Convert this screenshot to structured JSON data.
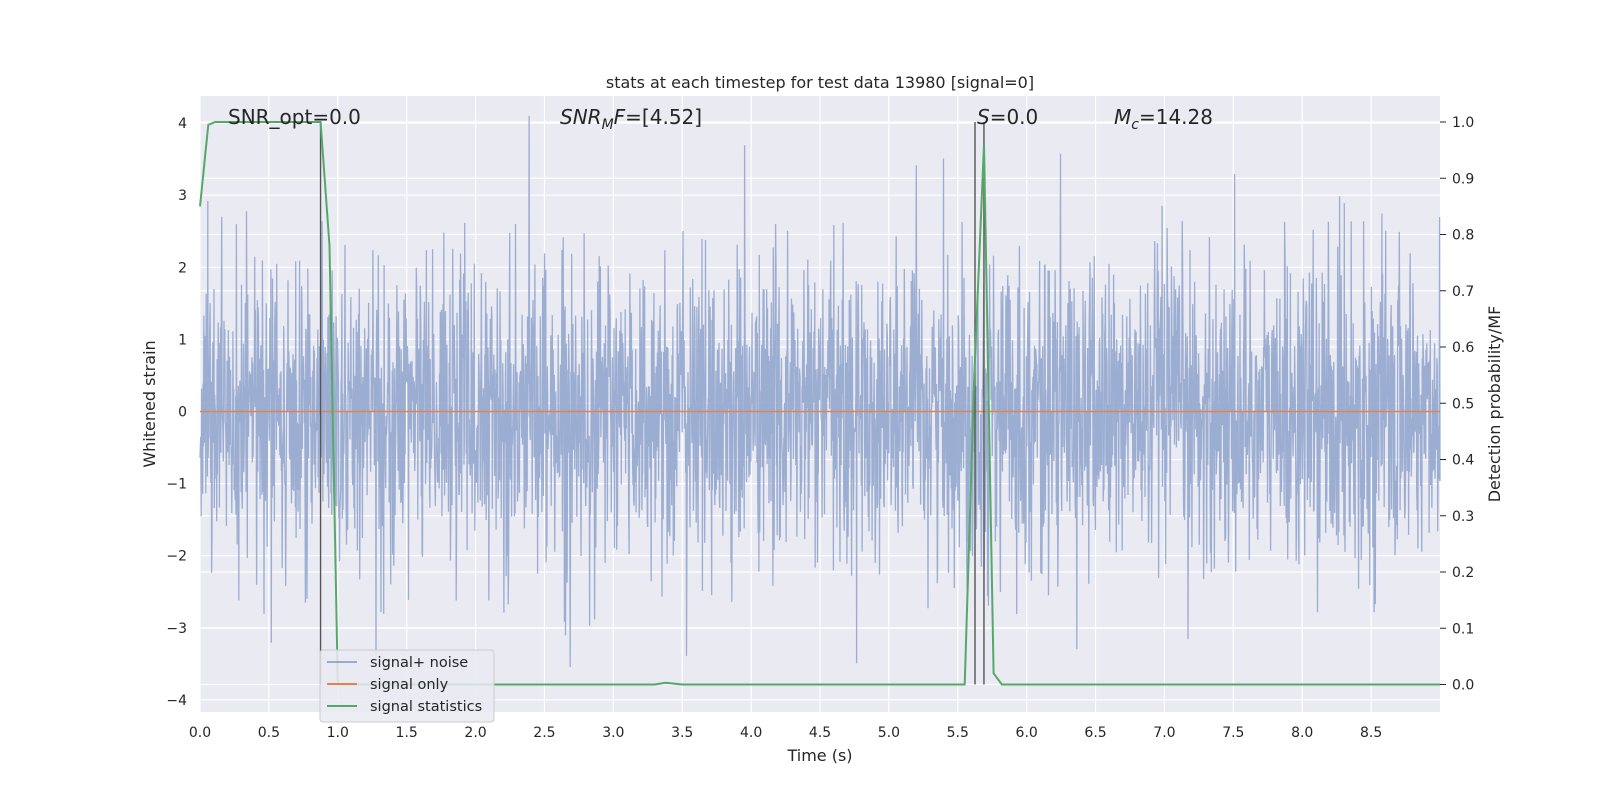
{
  "chart_data": {
    "type": "line",
    "title": "stats at each timestep for test data 13980 [signal=0]",
    "xlabel": "Time (s)",
    "ylabel_left": "Whitened strain",
    "ylabel_right": "Detection probability/MF",
    "xlim": [
      0.0,
      9.0
    ],
    "ylim_left": [
      -4.15,
      4.4
    ],
    "ylim_right": [
      -0.047,
      1.047
    ],
    "grid": true,
    "legend_placement": "lower-left",
    "x_ticks": [
      "0.0",
      "0.5",
      "1.0",
      "1.5",
      "2.0",
      "2.5",
      "3.0",
      "3.5",
      "4.0",
      "4.5",
      "5.0",
      "5.5",
      "6.0",
      "6.5",
      "7.0",
      "7.5",
      "8.0",
      "8.5"
    ],
    "y_ticks_left": [
      "−4",
      "−3",
      "−2",
      "−1",
      "0",
      "1",
      "2",
      "3",
      "4"
    ],
    "y_ticks_right": [
      "0.0",
      "0.1",
      "0.2",
      "0.3",
      "0.4",
      "0.5",
      "0.6",
      "0.7",
      "0.8",
      "0.9",
      "1.0"
    ],
    "annotations": {
      "snr_opt": "SNR_opt=0.0",
      "snr_mf_main": "SNR",
      "snr_mf_sub": "M",
      "snr_mf_rest": "F=[4.52]",
      "s_main": "S",
      "s_rest": "=0.0",
      "mc_main": "M",
      "mc_sub": "c",
      "mc_rest": "=14.28"
    },
    "vertical_markers_x": [
      0.875,
      5.625,
      5.69
    ],
    "series": [
      {
        "name": "signal+ noise",
        "axis": "left",
        "color": "#98aad0",
        "description_values": "dense whitened noise between about -3.8 and 4.0, core band between -1.5 and 1.7"
      },
      {
        "name": "signal only",
        "axis": "left",
        "color": "#dd8452",
        "x": [
          0.0,
          9.0
        ],
        "y": [
          0.0,
          0.0
        ]
      },
      {
        "name": "signal statistics",
        "axis": "right",
        "color": "#55a868",
        "x": [
          0.0,
          0.06,
          0.11,
          0.3,
          0.55,
          0.8,
          0.875,
          0.94,
          1.0,
          1.5,
          2.0,
          2.5,
          3.0,
          3.3,
          3.38,
          3.5,
          4.0,
          4.5,
          5.0,
          5.55,
          5.62,
          5.69,
          5.76,
          5.82,
          6.5,
          7.0,
          8.0,
          9.0
        ],
        "y": [
          0.85,
          0.995,
          1.0,
          1.0,
          1.0,
          1.0,
          1.0,
          0.78,
          0.0,
          0.0,
          0.0,
          0.0,
          0.0,
          0.0,
          0.003,
          0.0,
          0.0,
          0.0,
          0.0,
          0.0,
          0.55,
          0.96,
          0.02,
          0.0,
          0.0,
          0.0,
          0.0,
          0.0
        ]
      }
    ]
  },
  "legend": {
    "items": [
      "signal+ noise",
      "signal only",
      "signal statistics"
    ],
    "colors": [
      "#98aad0",
      "#dd8452",
      "#55a868"
    ]
  }
}
